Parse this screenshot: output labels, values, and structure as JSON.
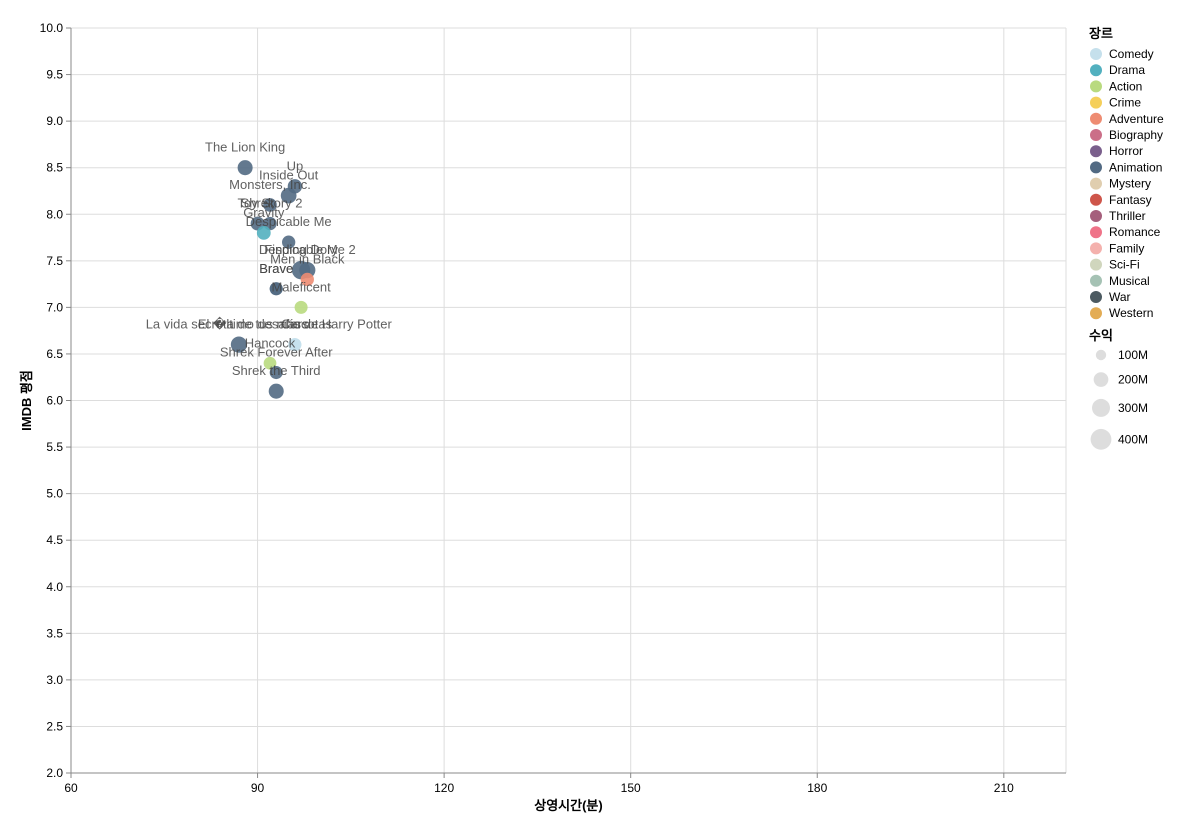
{
  "chart_data": {
    "type": "scatter",
    "xlabel": "상영시간(분)",
    "ylabel": "IMDB 평점",
    "xlim": [
      60,
      220
    ],
    "ylim": [
      2.0,
      10.0
    ],
    "xticks": [
      "60",
      "90",
      "120",
      "150",
      "180",
      "210"
    ],
    "yticks": [
      "2.0",
      "2.5",
      "3.0",
      "3.5",
      "4.0",
      "4.5",
      "5.0",
      "5.5",
      "6.0",
      "6.5",
      "7.0",
      "7.5",
      "8.0",
      "8.5",
      "9.0",
      "9.5",
      "10.0"
    ],
    "grid": true,
    "legend_position": "right",
    "color_legend": {
      "title": "장르",
      "entries": [
        {
          "name": "Comedy",
          "color": "#c5e0ec"
        },
        {
          "name": "Drama",
          "color": "#52b0bf"
        },
        {
          "name": "Action",
          "color": "#b9da7f"
        },
        {
          "name": "Crime",
          "color": "#f5cf5a"
        },
        {
          "name": "Adventure",
          "color": "#ee8c72"
        },
        {
          "name": "Biography",
          "color": "#cb6f88"
        },
        {
          "name": "Horror",
          "color": "#7a5f8c"
        },
        {
          "name": "Animation",
          "color": "#526a83"
        },
        {
          "name": "Mystery",
          "color": "#e0ceaf"
        },
        {
          "name": "Fantasy",
          "color": "#ce554a"
        },
        {
          "name": "Thriller",
          "color": "#a55f7c"
        },
        {
          "name": "Romance",
          "color": "#ef7388"
        },
        {
          "name": "Family",
          "color": "#f4b1ad"
        },
        {
          "name": "Sci-Fi",
          "color": "#d0d6bd"
        },
        {
          "name": "Musical",
          "color": "#a5c2b4"
        },
        {
          "name": "War",
          "color": "#4c5a61"
        },
        {
          "name": "Western",
          "color": "#e3ac54"
        }
      ]
    },
    "size_legend": {
      "title": "수익",
      "entries": [
        {
          "label": "100M",
          "value": 100
        },
        {
          "label": "200M",
          "value": 200
        },
        {
          "label": "300M",
          "value": 300
        },
        {
          "label": "400M",
          "value": 400
        }
      ]
    },
    "points": [
      {
        "title": "The Lion King",
        "runtime": 88,
        "rating": 8.5,
        "genre": "Animation",
        "gross": 320
      },
      {
        "title": "Up",
        "runtime": 96,
        "rating": 8.3,
        "genre": "Animation",
        "gross": 290
      },
      {
        "title": "Inside Out",
        "runtime": 95,
        "rating": 8.2,
        "genre": "Animation",
        "gross": 350
      },
      {
        "title": "Monsters, Inc.",
        "runtime": 92,
        "rating": 8.1,
        "genre": "Animation",
        "gross": 260
      },
      {
        "title": "Toy Story 2",
        "runtime": 92,
        "rating": 7.9,
        "genre": "Animation",
        "gross": 250
      },
      {
        "title": "Shrek",
        "runtime": 90,
        "rating": 7.9,
        "genre": "Animation",
        "gross": 270
      },
      {
        "title": "Gravity",
        "runtime": 91,
        "rating": 7.8,
        "genre": "Drama",
        "gross": 270
      },
      {
        "title": "Despicable Me",
        "runtime": 95,
        "rating": 7.7,
        "genre": "Animation",
        "gross": 250
      },
      {
        "title": "Finding Dory",
        "runtime": 97,
        "rating": 7.4,
        "genre": "Animation",
        "gross": 480
      },
      {
        "title": "Despicable Me 2",
        "runtime": 98,
        "rating": 7.4,
        "genre": "Animation",
        "gross": 370
      },
      {
        "title": "Men in Black",
        "runtime": 98,
        "rating": 7.3,
        "genre": "Adventure",
        "gross": 250
      },
      {
        "title": "Brave",
        "runtime": 93,
        "rating": 7.2,
        "genre": "Animation",
        "gross": 240
      },
      {
        "title": "Brave",
        "runtime": 93,
        "rating": 7.2,
        "genre": "Animation",
        "gross": 240
      },
      {
        "title": "Maleficent",
        "runtime": 97,
        "rating": 7.0,
        "genre": "Action",
        "gross": 240
      },
      {
        "title": "La vida secreta de tus mascotas",
        "runtime": 87,
        "rating": 6.6,
        "genre": "Animation",
        "gross": 370
      },
      {
        "title": "Cars",
        "runtime": 96,
        "rating": 6.6,
        "genre": "Comedy",
        "gross": 240
      },
      {
        "title": "El �ltimo desafío de Harry Potter",
        "runtime": 96,
        "rating": 6.6,
        "genre": "Comedy",
        "gross": 240
      },
      {
        "title": "Hancock",
        "runtime": 92,
        "rating": 6.4,
        "genre": "Action",
        "gross": 230
      },
      {
        "title": "Shrek Forever After",
        "runtime": 93,
        "rating": 6.3,
        "genre": "Animation",
        "gross": 240
      },
      {
        "title": "Shrek the Third",
        "runtime": 93,
        "rating": 6.1,
        "genre": "Animation",
        "gross": 320
      }
    ]
  }
}
